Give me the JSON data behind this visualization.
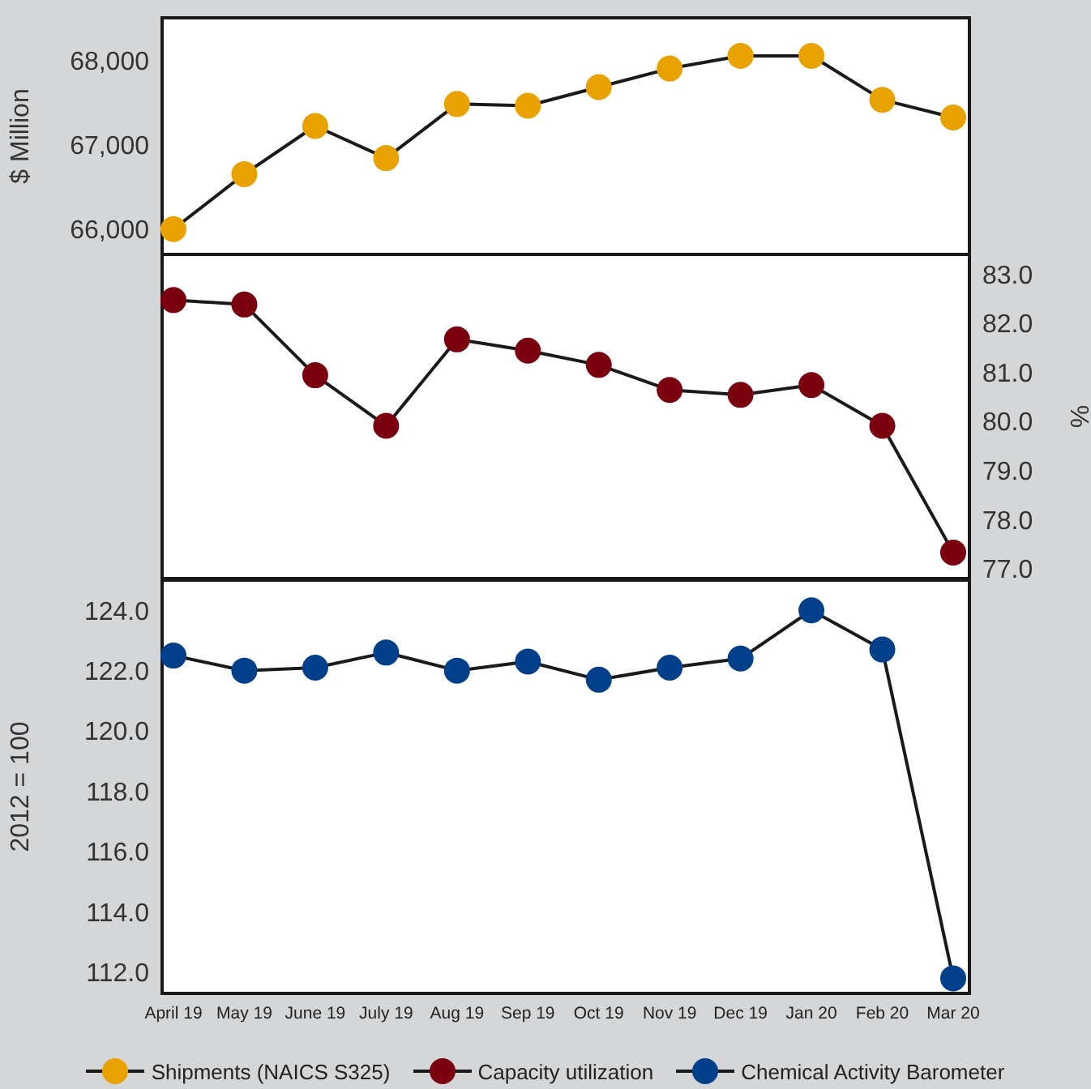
{
  "chart_data": [
    {
      "type": "line",
      "categories": [
        null,
        null,
        null,
        null,
        null,
        null,
        null,
        null,
        null,
        null,
        null,
        null
      ],
      "ylabel": "$ Million",
      "ylim": [
        65700,
        68500
      ],
      "yticks": [
        {
          "value": 66000,
          "label": "66,000"
        },
        {
          "value": 67000,
          "label": "67,000"
        },
        {
          "value": 68000,
          "label": "68,000"
        }
      ],
      "tick_labels": "y",
      "marker": "circle",
      "legend": "bottom",
      "series": [
        {
          "name": "Shipments (NAICS S325)",
          "color": "#1a1a1a",
          "colors": [
            "#e8a200",
            "#e8a200",
            "#e8a200",
            "#e8a200",
            "#e8a200",
            "#e8a200",
            "#e8a200",
            "#e8a200",
            "#e8a200",
            "#e8a200",
            "#e8a200",
            "#e8a200"
          ],
          "values": [
            66000,
            66650,
            67220,
            66840,
            67480,
            67460,
            67680,
            67900,
            68050,
            68050,
            67530,
            67320
          ]
        }
      ]
    },
    {
      "type": "line",
      "categories": [
        null,
        null,
        null,
        null,
        null,
        null,
        null,
        null,
        null,
        null,
        null,
        null
      ],
      "ylabel": "%",
      "ylim": [
        76.8,
        83.4
      ],
      "yticks": [
        {
          "value": 77,
          "label": "77.0"
        },
        {
          "value": 78,
          "label": "78.0"
        },
        {
          "value": 79,
          "label": "79.0"
        },
        {
          "value": 80,
          "label": "80.0"
        },
        {
          "value": 81,
          "label": "81.0"
        },
        {
          "value": 82,
          "label": "82.0"
        },
        {
          "value": 83,
          "label": "83.0"
        }
      ],
      "tick_labels": "y",
      "marker": "circle",
      "legend": "bottom",
      "series": [
        {
          "name": "Capacity utilization",
          "color": "#1a1a1a",
          "colors": [
            "#7a0010",
            "#7a0010",
            "#7a0010",
            "#7a0010",
            "#7a0010",
            "#7a0010",
            "#7a0010",
            "#7a0010",
            "#7a0010",
            "#7a0010",
            "#7a0010",
            "#7a0010"
          ],
          "values": [
            82.47,
            82.38,
            80.94,
            79.91,
            81.67,
            81.44,
            81.15,
            80.64,
            80.54,
            80.74,
            79.91,
            77.33
          ]
        }
      ]
    },
    {
      "type": "line",
      "categories": [
        "April 19",
        "May 19",
        "June 19",
        "July 19",
        "Aug 19",
        "Sep 19",
        "Oct 19",
        "Nov 19",
        "Dec 19",
        "Jan 20",
        "Feb 20",
        "Mar 20"
      ],
      "ylabel": "2012 = 100",
      "ylim": [
        111.3,
        125
      ],
      "yticks": [
        {
          "value": 112,
          "label": "112.0"
        },
        {
          "value": 114,
          "label": "114.0"
        },
        {
          "value": 116,
          "label": "116.0"
        },
        {
          "value": 118,
          "label": "118.0"
        },
        {
          "value": 120,
          "label": "120.0"
        },
        {
          "value": 122,
          "label": "122.0"
        },
        {
          "value": 124,
          "label": "124.0"
        }
      ],
      "marker": "circle",
      "legend": "bottom",
      "series": [
        {
          "name": "Chemical Activity Barometer",
          "color": "#1a1a1a",
          "colors": [
            "#003f8a",
            "#003f8a",
            "#003f8a",
            "#003f8a",
            "#003f8a",
            "#003f8a",
            "#003f8a",
            "#003f8a",
            "#003f8a",
            "#003f8a",
            "#003f8a",
            "#003f8a"
          ],
          "values": [
            122.5,
            122.0,
            122.1,
            122.6,
            122.0,
            122.3,
            121.7,
            122.1,
            122.4,
            124.0,
            122.7,
            111.8
          ]
        }
      ]
    }
  ]
}
